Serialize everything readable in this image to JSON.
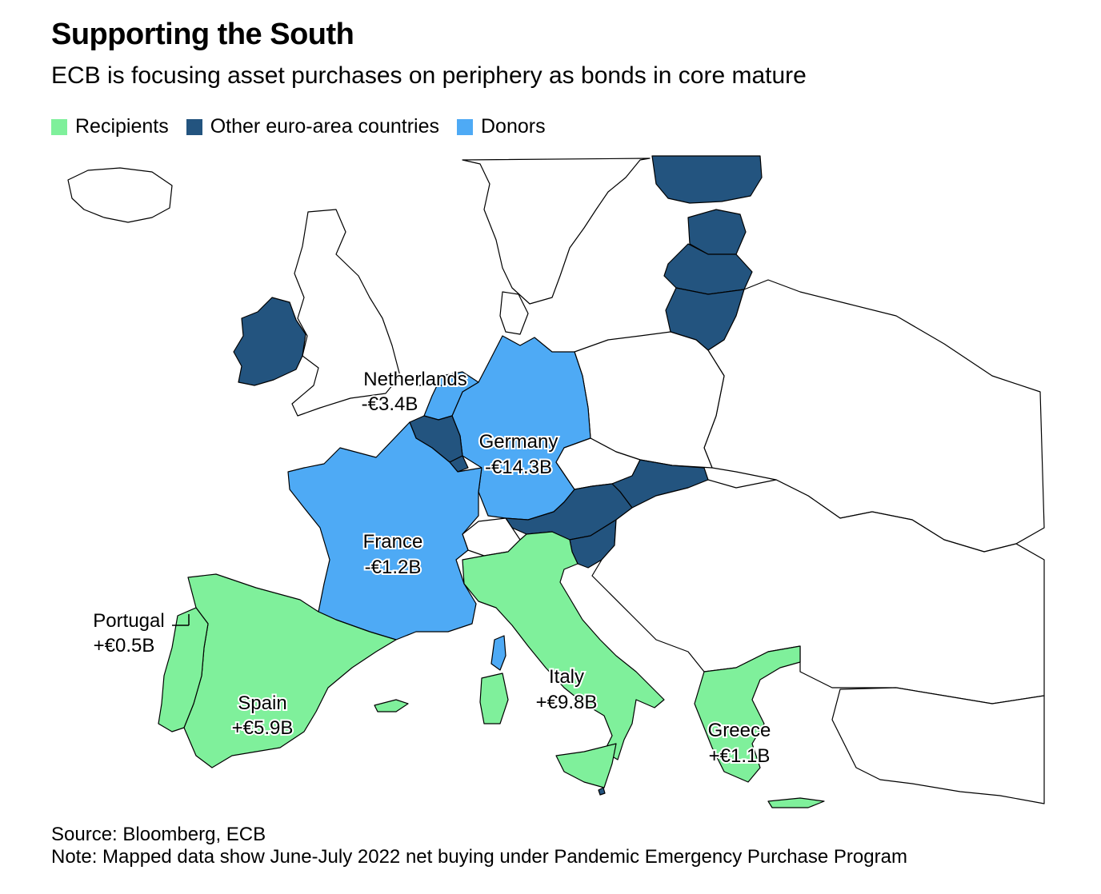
{
  "title": "Supporting the South",
  "subtitle": "ECB is focusing asset purchases on periphery as bonds in core mature",
  "legend": [
    {
      "label": "Recipients",
      "color": "#7ff09b"
    },
    {
      "label": "Other euro-area countries",
      "color": "#23547f"
    },
    {
      "label": "Donors",
      "color": "#4eaaf5"
    }
  ],
  "colors": {
    "recipients": "#7ff09b",
    "other": "#23547f",
    "donors": "#4eaaf5",
    "non_euro": "#ffffff",
    "border": "#000000"
  },
  "countries": {
    "netherlands": {
      "name": "Netherlands",
      "value": "-€3.4B",
      "category": "donors"
    },
    "germany": {
      "name": "Germany",
      "value": "-€14.3B",
      "category": "donors"
    },
    "france": {
      "name": "France",
      "value": "-€1.2B",
      "category": "donors"
    },
    "portugal": {
      "name": "Portugal",
      "value": "+€0.5B",
      "category": "recipients"
    },
    "spain": {
      "name": "Spain",
      "value": "+€5.9B",
      "category": "recipients"
    },
    "italy": {
      "name": "Italy",
      "value": "+€9.8B",
      "category": "recipients"
    },
    "greece": {
      "name": "Greece",
      "value": "+€1.1B",
      "category": "recipients"
    }
  },
  "footer": {
    "source": "Source: Bloomberg, ECB",
    "note": "Note: Mapped data show June-July 2022 net buying under Pandemic Emergency Purchase Program"
  }
}
